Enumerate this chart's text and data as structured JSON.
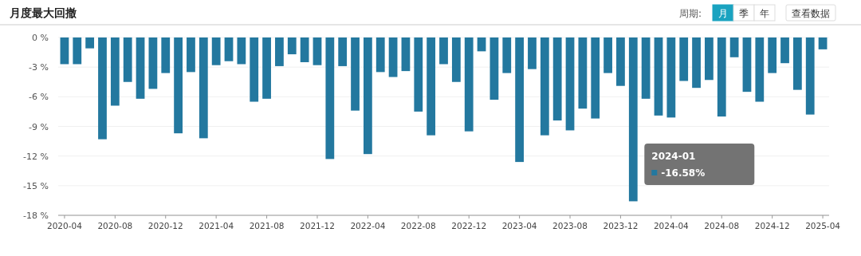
{
  "chart_data": {
    "type": "bar",
    "title": "月度最大回撤",
    "categories": [
      "2020-04",
      null,
      null,
      null,
      "2020-08",
      null,
      null,
      null,
      "2020-12",
      null,
      null,
      null,
      "2021-04",
      null,
      null,
      null,
      "2021-08",
      null,
      null,
      null,
      "2021-12",
      null,
      null,
      null,
      "2022-04",
      null,
      null,
      null,
      "2022-08",
      null,
      null,
      null,
      "2022-12",
      null,
      null,
      null,
      "2023-04",
      null,
      null,
      null,
      "2023-08",
      null,
      null,
      null,
      "2023-12",
      null,
      null,
      null,
      "2024-04",
      null,
      null,
      null,
      "2024-08",
      null,
      null,
      null,
      "2024-12",
      null,
      null,
      null,
      "2025-04"
    ],
    "values": [
      -2.7,
      -2.7,
      -1.1,
      -10.3,
      -6.9,
      -4.5,
      -6.2,
      -5.2,
      -3.6,
      -9.7,
      -3.5,
      -10.2,
      -2.8,
      -2.4,
      -2.7,
      -6.5,
      -6.2,
      -2.9,
      -1.7,
      -2.5,
      -2.8,
      -12.3,
      -2.9,
      -7.4,
      -11.8,
      -3.5,
      -4.0,
      -3.4,
      -7.5,
      -9.9,
      -2.7,
      -4.5,
      -9.5,
      -1.4,
      -6.3,
      -3.6,
      -12.6,
      -3.2,
      -9.9,
      -8.4,
      -9.4,
      -7.2,
      -8.2,
      -3.6,
      -4.9,
      -16.58,
      -6.2,
      -7.9,
      -8.1,
      -4.4,
      -5.1,
      -4.3,
      -8.0,
      -2.0,
      -5.5,
      -6.5,
      -3.6,
      -2.6,
      -5.3,
      -7.8,
      -1.2
    ],
    "color": "#23789f",
    "ylim": [
      -18,
      0
    ],
    "yticks": [
      {
        "value": 0,
        "label": "0 %"
      },
      {
        "value": -3,
        "label": "-3 %"
      },
      {
        "value": -6,
        "label": "-6 %"
      },
      {
        "value": -9,
        "label": "-9 %"
      },
      {
        "value": -12,
        "label": "-12 %"
      },
      {
        "value": -15,
        "label": "-15 %"
      },
      {
        "value": -18,
        "label": "-18 %"
      }
    ],
    "grid": "y",
    "annotations": [
      "周期:",
      "月",
      "季",
      "年",
      "查看数据",
      "2024-01",
      "-16.58%"
    ]
  }
}
